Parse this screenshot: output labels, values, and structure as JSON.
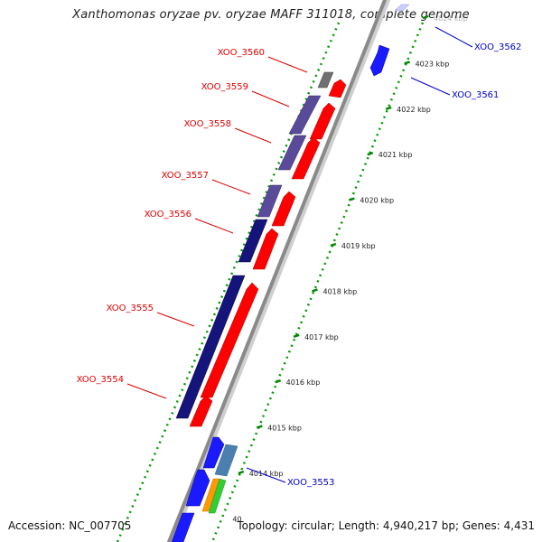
{
  "title": "Xanthomonas oryzae pv. oryzae MAFF 311018, complete genome",
  "footer": {
    "accession": "Accession: NC_007705",
    "summary": "Topology: circular; Length: 4,940,217 bp; Genes: 4,431"
  },
  "scale": {
    "unit": "kbp",
    "ticks": [
      {
        "pos": 4014,
        "label": "4014 kbp"
      },
      {
        "pos": 4015,
        "label": "4015 kbp"
      },
      {
        "pos": 4016,
        "label": "4016 kbp"
      },
      {
        "pos": 4017,
        "label": "4017 kbp"
      },
      {
        "pos": 4018,
        "label": "4018 kbp"
      },
      {
        "pos": 4019,
        "label": "4019 kbp"
      },
      {
        "pos": 4020,
        "label": "4020 kbp"
      },
      {
        "pos": 4021,
        "label": "4021 kbp"
      },
      {
        "pos": 4022,
        "label": "4022 kbp"
      },
      {
        "pos": 4023,
        "label": "4023 kbp"
      },
      {
        "pos": 4024,
        "label": "4024 kbp"
      }
    ],
    "partial_labels": [
      {
        "pos": 4013,
        "label": "40"
      }
    ]
  },
  "colors": {
    "backbone": "#8a8a8a",
    "cds_red": "#ff0000",
    "cds_blue": "#1a1aff",
    "cds_navy": "#14147a",
    "cds_purple": "#5a4a9a",
    "cds_grey": "#707070",
    "cds_steel": "#4a7fb0",
    "cds_orange": "#ff9900",
    "cds_green": "#33cc33",
    "label_forward": "#dd0000",
    "label_reverse": "#0000cc",
    "tick_green": "#008800"
  },
  "labeled_genes": [
    {
      "name": "XOO_3562",
      "strand": "reverse"
    },
    {
      "name": "XOO_3561",
      "strand": "reverse"
    },
    {
      "name": "XOO_3560",
      "strand": "forward"
    },
    {
      "name": "XOO_3559",
      "strand": "forward"
    },
    {
      "name": "XOO_3558",
      "strand": "forward"
    },
    {
      "name": "XOO_3557",
      "strand": "forward"
    },
    {
      "name": "XOO_3556",
      "strand": "forward"
    },
    {
      "name": "XOO_3555",
      "strand": "forward"
    },
    {
      "name": "XOO_3554",
      "strand": "forward"
    },
    {
      "name": "XOO_3553",
      "strand": "reverse"
    }
  ]
}
